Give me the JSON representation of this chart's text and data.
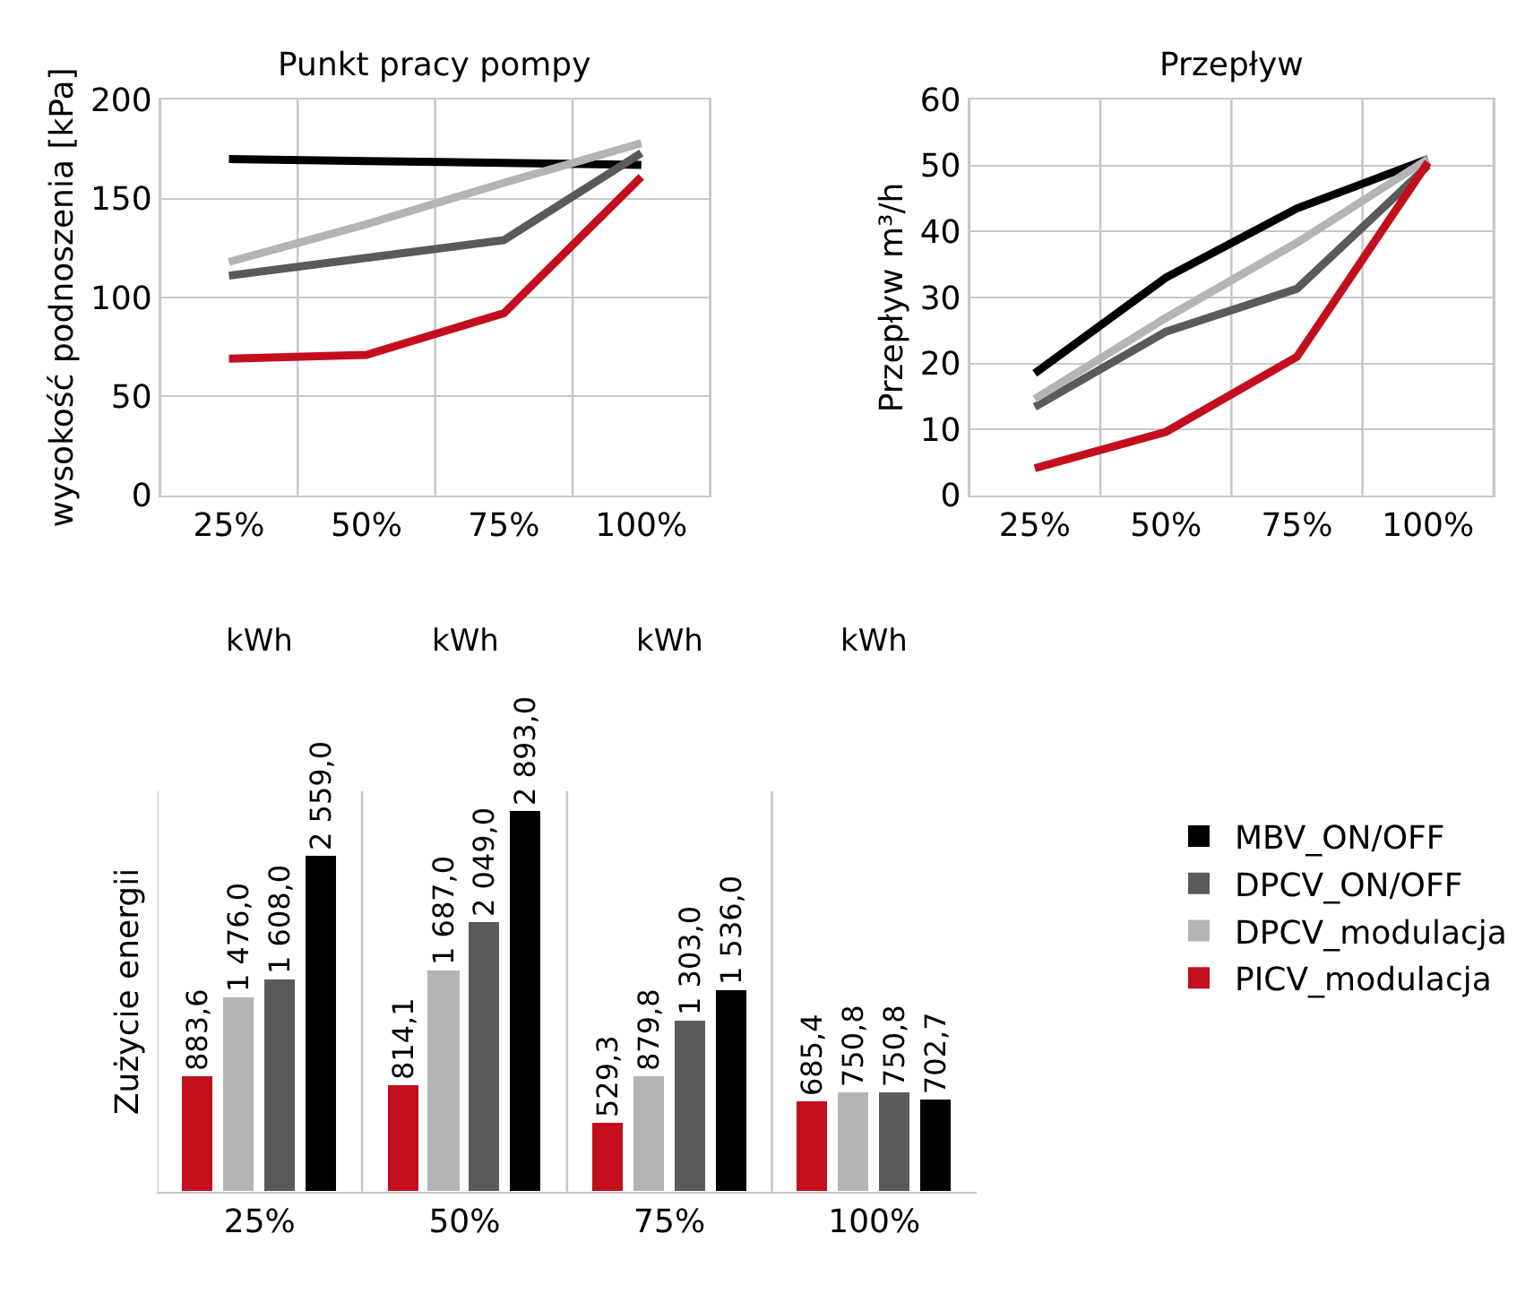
{
  "chart_data": [
    {
      "type": "line",
      "title": "Punkt pracy pompy",
      "ylabel": "wysokość podnoszenia [kPa]",
      "categories": [
        "25%",
        "50%",
        "75%",
        "100%"
      ],
      "ylim": [
        0,
        200
      ],
      "yticks": [
        0,
        50,
        100,
        150,
        200
      ],
      "grid": true,
      "line_style": "solid",
      "series": [
        {
          "color": "#000000",
          "values": [
            170,
            169,
            168,
            167
          ]
        },
        {
          "color": "#5a5a5a",
          "values": [
            111,
            120,
            129,
            173
          ]
        },
        {
          "color": "#b4b4b4",
          "values": [
            118,
            137,
            158,
            178
          ]
        },
        {
          "color": "#c40e1e",
          "values": [
            69,
            71,
            92,
            161
          ]
        }
      ]
    },
    {
      "type": "line",
      "title": "Przepływ",
      "ylabel": "Przepływ m³/h",
      "categories": [
        "25%",
        "50%",
        "75%",
        "100%"
      ],
      "ylim": [
        0,
        60
      ],
      "yticks": [
        0,
        10,
        20,
        30,
        40,
        50,
        60
      ],
      "grid": true,
      "line_style": "solid",
      "series": [
        {
          "color": "#000000",
          "values": [
            18.5,
            33,
            43.5,
            51
          ]
        },
        {
          "color": "#5a5a5a",
          "values": [
            13.4,
            24.8,
            31.3,
            50
          ]
        },
        {
          "color": "#b4b4b4",
          "values": [
            14.6,
            26.9,
            38.3,
            51
          ]
        },
        {
          "color": "#c40e1e",
          "values": [
            4.1,
            9.6,
            21,
            50.5
          ]
        }
      ]
    },
    {
      "type": "bar",
      "ylabel": "Zużycie energii",
      "categories": [
        "25%",
        "50%",
        "75%",
        "100%"
      ],
      "grid": "x",
      "legend": "right",
      "tick_labels": "x",
      "annotations": [
        "kWh",
        "kWh",
        "kWh",
        "kWh"
      ],
      "series": [
        {
          "name": "PICV_modulacja",
          "color": "#c40e1e",
          "values": [
            883.6,
            814.1,
            529.3,
            685.4
          ],
          "value_labels": [
            "883,6",
            "814,1",
            "529,3",
            "685,4"
          ]
        },
        {
          "name": "DPCV_modulacja",
          "color": "#b4b4b4",
          "values": [
            1476.0,
            1687.0,
            879.8,
            750.8
          ],
          "value_labels": [
            "1 476,0",
            "1 687,0",
            "879,8",
            "750,8"
          ]
        },
        {
          "name": "DPCV_ON/OFF",
          "color": "#5a5a5a",
          "values": [
            1608.0,
            2049.0,
            1303.0,
            750.8
          ],
          "value_labels": [
            "1 608,0",
            "2 049,0",
            "1 303,0",
            "750,8"
          ]
        },
        {
          "name": "MBV_ON/OFF",
          "color": "#000000",
          "values": [
            2559.0,
            2893.0,
            1536.0,
            702.7
          ],
          "value_labels": [
            "2 559,0",
            "2 893,0",
            "1 536,0",
            "702,7"
          ]
        }
      ]
    }
  ]
}
